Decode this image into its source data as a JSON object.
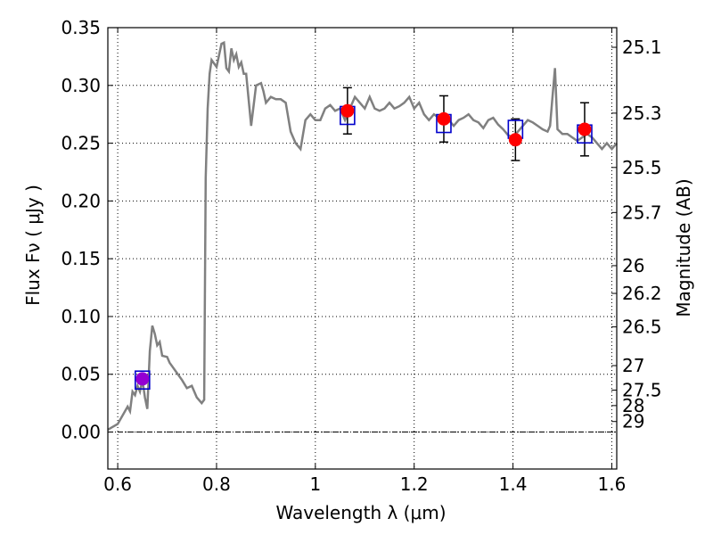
{
  "chart_data": {
    "type": "scatter",
    "xlabel": "Wavelength  λ (μm)",
    "ylabel": "Flux  Fν  ( μJy )",
    "y2label": "Magnitude (AB)",
    "xlim": [
      0.58,
      1.61
    ],
    "ylim": [
      -0.032,
      0.35
    ],
    "grid": true,
    "colors": {
      "spectrum": "#808080",
      "observed": "#ff0000",
      "model": "#0000cc",
      "errorbar": "#000000",
      "purple_point": "#9400d3"
    },
    "x_ticks": [
      "0.6",
      "0.8",
      "1",
      "1.2",
      "1.4",
      "1.6"
    ],
    "x_tick_values": [
      0.6,
      0.8,
      1.0,
      1.2,
      1.4,
      1.6
    ],
    "y_ticks": [
      "0.00",
      "0.05",
      "0.10",
      "0.15",
      "0.20",
      "0.25",
      "0.30",
      "0.35"
    ],
    "y_tick_values": [
      0.0,
      0.05,
      0.1,
      0.15,
      0.2,
      0.25,
      0.3,
      0.35
    ],
    "y2_ticks": [
      "25.1",
      "25.3",
      "25.5",
      "25.7",
      "26",
      "26.2",
      "26.5",
      "27",
      "27.5",
      "28",
      "29"
    ],
    "y2_tick_values": [
      0.333,
      0.276,
      0.229,
      0.19,
      0.144,
      0.12,
      0.091,
      0.0575,
      0.0363,
      0.0229,
      0.00912
    ],
    "spectrum": {
      "name": "",
      "x": [
        0.58,
        0.6,
        0.62,
        0.625,
        0.63,
        0.635,
        0.64,
        0.645,
        0.65,
        0.655,
        0.66,
        0.665,
        0.67,
        0.675,
        0.68,
        0.685,
        0.69,
        0.7,
        0.705,
        0.71,
        0.72,
        0.73,
        0.74,
        0.75,
        0.76,
        0.77,
        0.775,
        0.778,
        0.782,
        0.786,
        0.79,
        0.8,
        0.81,
        0.815,
        0.82,
        0.825,
        0.83,
        0.835,
        0.84,
        0.845,
        0.85,
        0.855,
        0.86,
        0.87,
        0.88,
        0.89,
        0.895,
        0.9,
        0.91,
        0.92,
        0.93,
        0.94,
        0.95,
        0.96,
        0.97,
        0.98,
        0.99,
        1.0,
        1.01,
        1.02,
        1.03,
        1.04,
        1.05,
        1.06,
        1.07,
        1.08,
        1.09,
        1.1,
        1.11,
        1.12,
        1.13,
        1.14,
        1.15,
        1.16,
        1.17,
        1.18,
        1.19,
        1.2,
        1.21,
        1.22,
        1.23,
        1.24,
        1.25,
        1.26,
        1.27,
        1.28,
        1.29,
        1.3,
        1.31,
        1.32,
        1.33,
        1.34,
        1.35,
        1.36,
        1.37,
        1.38,
        1.39,
        1.4,
        1.41,
        1.42,
        1.43,
        1.44,
        1.45,
        1.46,
        1.47,
        1.475,
        1.48,
        1.485,
        1.49,
        1.5,
        1.51,
        1.52,
        1.53,
        1.54,
        1.55,
        1.56,
        1.57,
        1.58,
        1.59,
        1.6,
        1.61
      ],
      "y": [
        0.002,
        0.007,
        0.022,
        0.018,
        0.035,
        0.032,
        0.04,
        0.035,
        0.045,
        0.03,
        0.02,
        0.07,
        0.092,
        0.085,
        0.075,
        0.078,
        0.066,
        0.065,
        0.06,
        0.057,
        0.051,
        0.045,
        0.038,
        0.04,
        0.03,
        0.025,
        0.028,
        0.22,
        0.28,
        0.31,
        0.322,
        0.316,
        0.336,
        0.337,
        0.315,
        0.312,
        0.332,
        0.322,
        0.327,
        0.316,
        0.32,
        0.31,
        0.31,
        0.265,
        0.3,
        0.302,
        0.295,
        0.285,
        0.29,
        0.288,
        0.288,
        0.285,
        0.26,
        0.25,
        0.245,
        0.27,
        0.275,
        0.27,
        0.27,
        0.28,
        0.283,
        0.278,
        0.28,
        0.27,
        0.28,
        0.29,
        0.285,
        0.28,
        0.29,
        0.28,
        0.278,
        0.28,
        0.285,
        0.28,
        0.282,
        0.285,
        0.29,
        0.28,
        0.285,
        0.275,
        0.27,
        0.275,
        0.272,
        0.268,
        0.27,
        0.265,
        0.27,
        0.272,
        0.275,
        0.27,
        0.268,
        0.263,
        0.27,
        0.272,
        0.266,
        0.262,
        0.257,
        0.255,
        0.26,
        0.265,
        0.27,
        0.268,
        0.265,
        0.262,
        0.26,
        0.265,
        0.29,
        0.315,
        0.262,
        0.258,
        0.258,
        0.255,
        0.252,
        0.255,
        0.258,
        0.255,
        0.25,
        0.245,
        0.25,
        0.245,
        0.25
      ]
    },
    "observed": {
      "name": "",
      "x": [
        0.65,
        1.065,
        1.26,
        1.405,
        1.545
      ],
      "y": [
        0.046,
        0.278,
        0.271,
        0.253,
        0.262
      ],
      "yerr": [
        0.0,
        0.02,
        0.02,
        0.018,
        0.023
      ]
    },
    "model": {
      "name": "",
      "x": [
        0.65,
        1.065,
        1.26,
        1.405,
        1.545
      ],
      "y": [
        0.045,
        0.274,
        0.267,
        0.262,
        0.258
      ]
    }
  }
}
